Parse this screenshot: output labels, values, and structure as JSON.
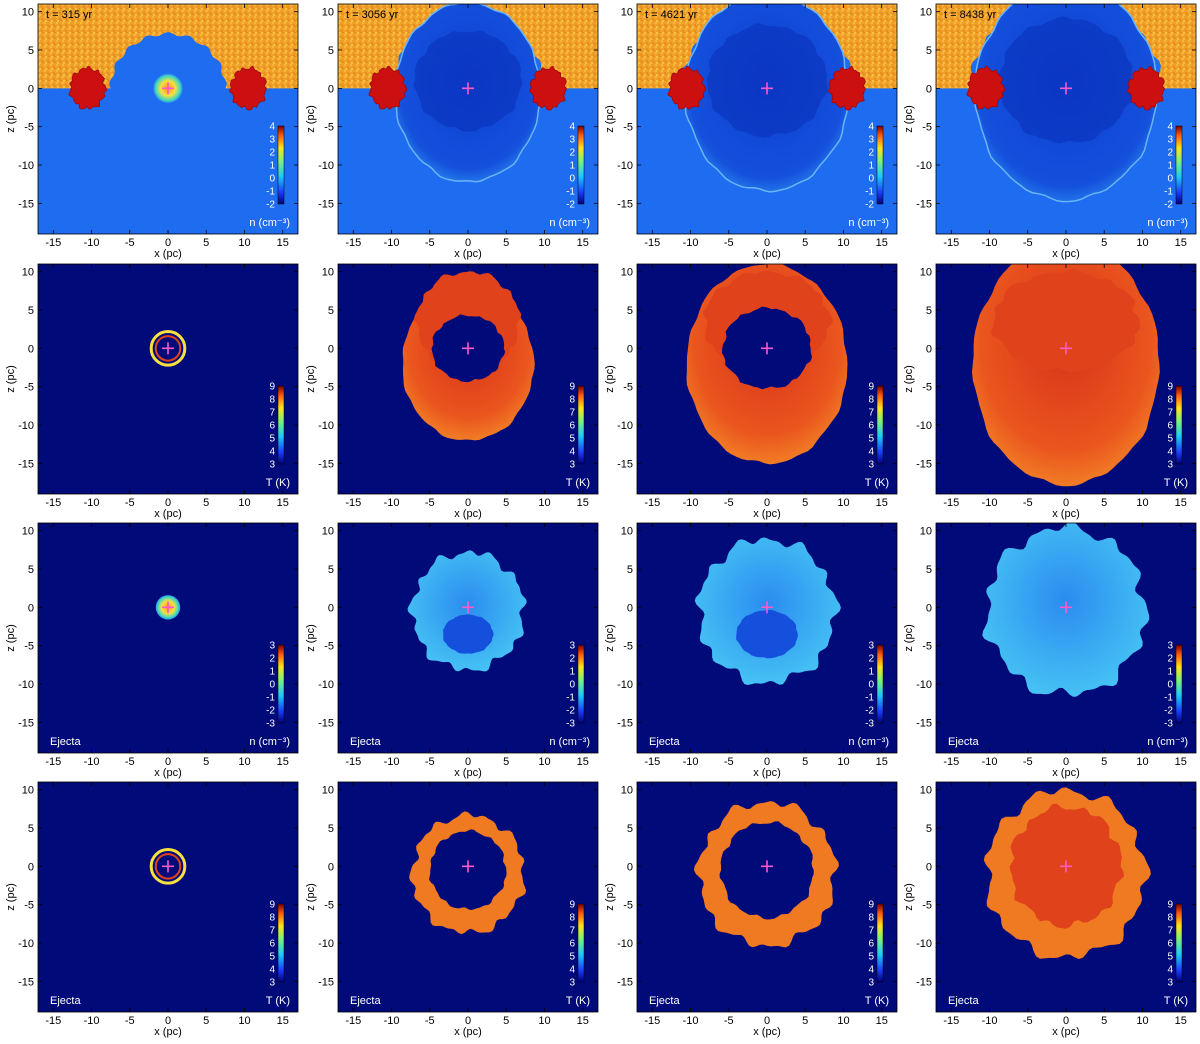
{
  "figure": {
    "time_labels": [
      "t = 315 yr",
      "t = 3056 yr",
      "t = 4621 yr",
      "t = 8438 yr"
    ],
    "axes": {
      "xlabel": "x (pc)",
      "ylabel": "z (pc)",
      "xticks": [
        "-15",
        "-10",
        "-5",
        "0",
        "5",
        "10",
        "15"
      ],
      "zticks": [
        "10",
        "5",
        "0",
        "-5",
        "-10",
        "-15"
      ],
      "xlim": [
        -17,
        17
      ],
      "zlim": [
        -19,
        11
      ]
    },
    "rows": [
      {
        "quantity": "density",
        "corner_label": "",
        "colorbar_unit": "n (cm⁻³)",
        "colorbar_ticks": [
          "4",
          "3",
          "2",
          "1",
          "0",
          "-1",
          "-2"
        ]
      },
      {
        "quantity": "temperature",
        "corner_label": "",
        "colorbar_unit": "T (K)",
        "colorbar_ticks": [
          "9",
          "8",
          "7",
          "6",
          "5",
          "4",
          "3"
        ]
      },
      {
        "quantity": "ejecta-density",
        "corner_label": "Ejecta",
        "colorbar_unit": "n (cm⁻³)",
        "colorbar_ticks": [
          "3",
          "2",
          "1",
          "0",
          "-1",
          "-2",
          "-3"
        ]
      },
      {
        "quantity": "ejecta-temperature",
        "corner_label": "Ejecta",
        "colorbar_unit": "T (K)",
        "colorbar_ticks": [
          "9",
          "8",
          "7",
          "6",
          "5",
          "4",
          "3"
        ]
      }
    ],
    "colors": {
      "background_blue": "#000a78",
      "ambient_density_blue": "#1e6cf0",
      "cloud_orange": "#f0a02a",
      "cloud_red": "#cc1010",
      "hot_red": "#e0421c",
      "hot_orange": "#f07a22",
      "warm_yellow": "#f6c02c",
      "ejecta_cyan": "#3ac8f4",
      "ejecta_blue": "#2a8cf0",
      "center_marker": "#ff5ac8"
    }
  }
}
